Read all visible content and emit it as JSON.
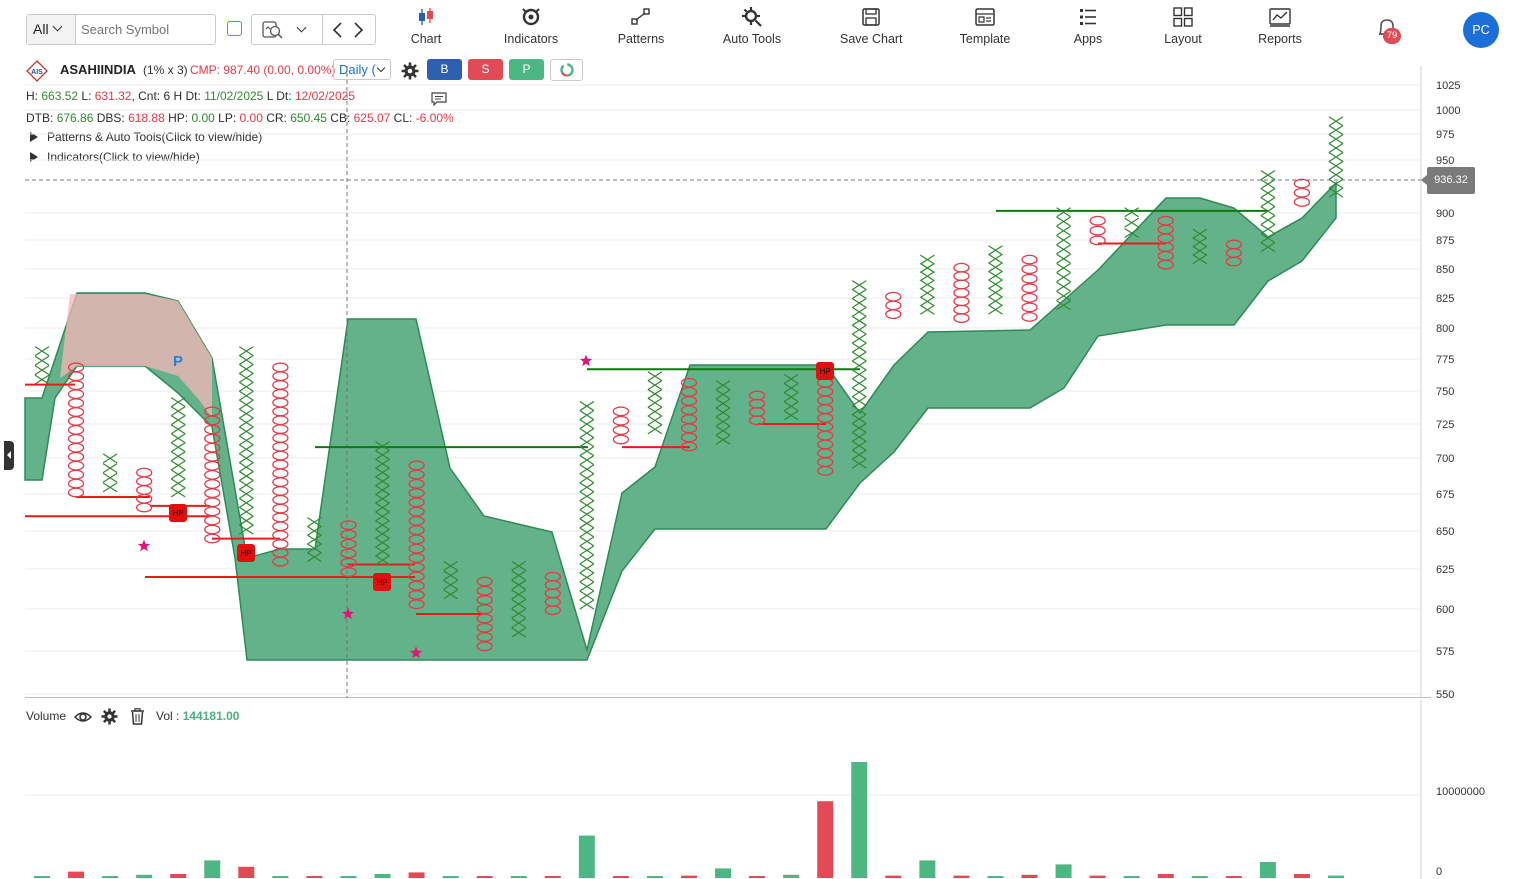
{
  "toolbar": {
    "exchange": "All",
    "search_placeholder": "Search Symbol",
    "buttons": [
      {
        "label": "Chart",
        "icon": "candlestick-icon"
      },
      {
        "label": "Indicators",
        "icon": "indicators-icon"
      },
      {
        "label": "Patterns",
        "icon": "patterns-icon"
      },
      {
        "label": "Auto Tools",
        "icon": "auto-tools-icon"
      },
      {
        "label": "Save Chart",
        "icon": "save-icon"
      },
      {
        "label": "Template",
        "icon": "template-icon"
      },
      {
        "label": "Apps",
        "icon": "apps-icon"
      },
      {
        "label": "Layout",
        "icon": "layout-icon"
      },
      {
        "label": "Reports",
        "icon": "reports-icon"
      }
    ],
    "notifications": "79",
    "avatar": "PC"
  },
  "header": {
    "symbol": "ASAHIINDIA",
    "box": "(1% x 3)",
    "cmp": "CMP: 987.40 (0.00, 0.00%)",
    "interval": "Daily (",
    "buy": "B",
    "sell": "S",
    "p": "P",
    "info1": {
      "h_k": "H:",
      "h_v": "663.52",
      "l_k": "L:",
      "l_v": "631.32",
      "cnt_k": ", Cnt:",
      "cnt_v": "6 H",
      "dt_k": " Dt:",
      "dt_v": "11/02/2025",
      "ldt_k": " L Dt:",
      "ldt_v": "12/02/2025"
    },
    "info2": {
      "dtb_k": "DTB:",
      "dtb_v": "676.86",
      "dbs_k": " DBS:",
      "dbs_v": "618.88",
      "hp_k": " HP:",
      "hp_v": "0.00",
      "lp_k": " LP:",
      "lp_v": "0.00",
      "cr_k": " CR:",
      "cr_v": "650.45",
      "cb_k": " CB:",
      "cb_v": "625.07",
      "cl_k": " CL:",
      "cl_v": "-6.00%"
    },
    "patterns_toggle": "Patterns & Auto Tools(Click to view/hide)",
    "indicators_toggle": "Indicators(Click to view/hide)"
  },
  "colors": {
    "x_color": "#2e8b2e",
    "o_color": "#e53946",
    "cloud": "#4ea77a",
    "cloud_bear": "#f7b5b8",
    "vol_up": "#4cb782",
    "vol_down": "#e24b55",
    "accent": "#1b6fd6"
  },
  "chart_data": {
    "type": "point-and-figure",
    "y_ticks": [
      1025,
      1000,
      975,
      950,
      900,
      875,
      850,
      825,
      800,
      775,
      750,
      725,
      700,
      675,
      650,
      625,
      600,
      575,
      550
    ],
    "last_price_label": "936.32",
    "pattern_marker": "P",
    "marker_label": "HP",
    "ylim": [
      540,
      1035
    ],
    "columns": [
      {
        "t": "X",
        "lo": 755,
        "hi": 785
      },
      {
        "t": "O",
        "lo": 673,
        "hi": 772
      },
      {
        "t": "X",
        "lo": 676,
        "hi": 703
      },
      {
        "t": "O",
        "lo": 663,
        "hi": 693
      },
      {
        "t": "X",
        "lo": 673,
        "hi": 745
      },
      {
        "t": "O",
        "lo": 642,
        "hi": 738
      },
      {
        "t": "X",
        "lo": 648,
        "hi": 785
      },
      {
        "t": "O",
        "lo": 627,
        "hi": 772
      },
      {
        "t": "X",
        "lo": 630,
        "hi": 659
      },
      {
        "t": "O",
        "lo": 620,
        "hi": 657
      },
      {
        "t": "X",
        "lo": 628,
        "hi": 712
      },
      {
        "t": "O",
        "lo": 600,
        "hi": 698
      },
      {
        "t": "X",
        "lo": 606,
        "hi": 630
      },
      {
        "t": "O",
        "lo": 575,
        "hi": 620
      },
      {
        "t": "X",
        "lo": 583,
        "hi": 630
      },
      {
        "t": "O",
        "lo": 597,
        "hi": 623
      },
      {
        "t": "X",
        "lo": 600,
        "hi": 742
      },
      {
        "t": "O",
        "lo": 710,
        "hi": 738
      },
      {
        "t": "X",
        "lo": 718,
        "hi": 765
      },
      {
        "t": "O",
        "lo": 705,
        "hi": 760
      },
      {
        "t": "X",
        "lo": 710,
        "hi": 758
      },
      {
        "t": "O",
        "lo": 725,
        "hi": 750
      },
      {
        "t": "X",
        "lo": 728,
        "hi": 763
      },
      {
        "t": "O",
        "lo": 688,
        "hi": 760
      },
      {
        "t": "X",
        "lo": 693,
        "hi": 840
      },
      {
        "t": "O",
        "lo": 808,
        "hi": 830
      },
      {
        "t": "X",
        "lo": 812,
        "hi": 862
      },
      {
        "t": "O",
        "lo": 805,
        "hi": 855
      },
      {
        "t": "X",
        "lo": 812,
        "hi": 870
      },
      {
        "t": "O",
        "lo": 805,
        "hi": 862
      },
      {
        "t": "X",
        "lo": 815,
        "hi": 905
      },
      {
        "t": "O",
        "lo": 870,
        "hi": 897
      },
      {
        "t": "X",
        "lo": 876,
        "hi": 905
      },
      {
        "t": "O",
        "lo": 850,
        "hi": 897
      },
      {
        "t": "X",
        "lo": 855,
        "hi": 885
      },
      {
        "t": "O",
        "lo": 853,
        "hi": 875
      },
      {
        "t": "X",
        "lo": 865,
        "hi": 940
      },
      {
        "t": "O",
        "lo": 906,
        "hi": 932
      },
      {
        "t": "X",
        "lo": 915,
        "hi": 993
      }
    ],
    "volume": {
      "label": "Volume",
      "value_label": "Vol :",
      "value": "144181.00",
      "y_ticks": [
        "10000000",
        "0"
      ],
      "bars": [
        0.1,
        0.8,
        0,
        0.4,
        0.5,
        2.2,
        1.4,
        0,
        0,
        0,
        0.5,
        0.7,
        0,
        0,
        0.1,
        0.1,
        5.3,
        0,
        0.1,
        0.3,
        1.2,
        0,
        0.4,
        9.6,
        14.5,
        0.3,
        2.2,
        0.3,
        0.2,
        0.4,
        1.7,
        0.3,
        0.2,
        0.5,
        0.1,
        0.1,
        2.0,
        0.5,
        0.3
      ],
      "bar_dirs": [
        "u",
        "d",
        "u",
        "u",
        "d",
        "u",
        "d",
        "u",
        "d",
        "u",
        "u",
        "d",
        "u",
        "d",
        "u",
        "d",
        "u",
        "d",
        "u",
        "d",
        "u",
        "d",
        "u",
        "d",
        "u",
        "d",
        "u",
        "d",
        "u",
        "d",
        "u",
        "d",
        "u",
        "d",
        "u",
        "d",
        "u",
        "d",
        "u"
      ]
    }
  }
}
